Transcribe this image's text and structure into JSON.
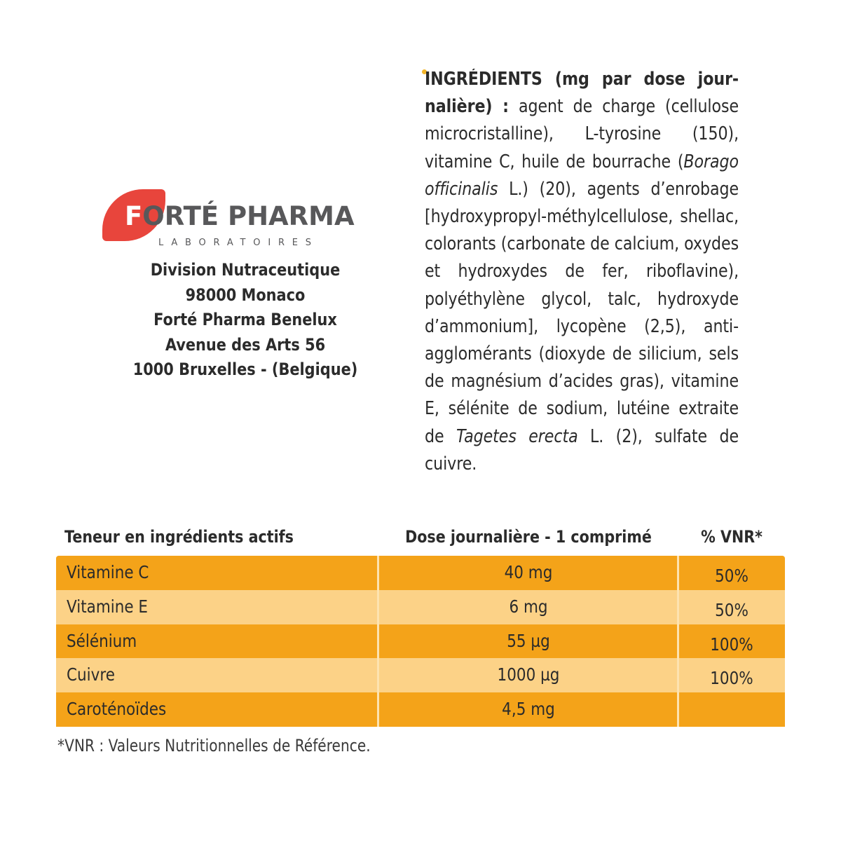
{
  "logo": {
    "brand_first": "F",
    "brand_rest": "ORTÉ PHARMA",
    "subtitle": "LABORATOIRES",
    "leaf_color": "#e8453c"
  },
  "address": {
    "lines": [
      "Division Nutraceutique",
      "98000 Monaco",
      "Forté Pharma Benelux",
      "Avenue des Arts 56",
      "1000 Bruxelles - (Belgique)"
    ]
  },
  "ingredients": {
    "heading": "INGRÉDIENTS (mg par dose jour-nalière) :",
    "part1": " agent de charge (cellulose microcristalline), L-tyrosine (150), vitamine C, huile de bourrache (",
    "latin1": "Borago officinalis",
    "part2": " L.) (20), agents d’enrobage [hydroxypropyl-méthylcellulose, shellac, colorants (carbonate de calcium, oxydes et hydroxydes de fer, riboflavine), polyéthylène glycol, talc, hydroxyde d’ammonium], lycopène (2,5), anti-agglomérants (dioxyde de silicium, sels de magnésium d’acides gras), vitamine E, sélénite de sodium, lutéine extraite de ",
    "latin2": "Tagetes erecta",
    "part3": " L. (2), sulfate de cuivre."
  },
  "table": {
    "headers": {
      "ingredient": "Teneur en ingrédients actifs",
      "dose": "Dose journalière - 1 comprimé",
      "vnr": "% VNR*"
    },
    "rows": [
      {
        "name": "Vitamine C",
        "dose": "40 mg",
        "vnr": "50%"
      },
      {
        "name": "Vitamine E",
        "dose": "6 mg",
        "vnr": "50%"
      },
      {
        "name": "Sélénium",
        "dose": "55 µg",
        "vnr": "100%"
      },
      {
        "name": "Cuivre",
        "dose": "1000 µg",
        "vnr": "100%"
      },
      {
        "name": "Caroténoïdes",
        "dose": "4,5 mg",
        "vnr": ""
      }
    ],
    "colors": {
      "dark_row": "#f4a319",
      "light_row": "#fcd287",
      "divider": "#fde3b0"
    }
  },
  "footnote": "*VNR : Valeurs Nutritionnelles de Référence."
}
